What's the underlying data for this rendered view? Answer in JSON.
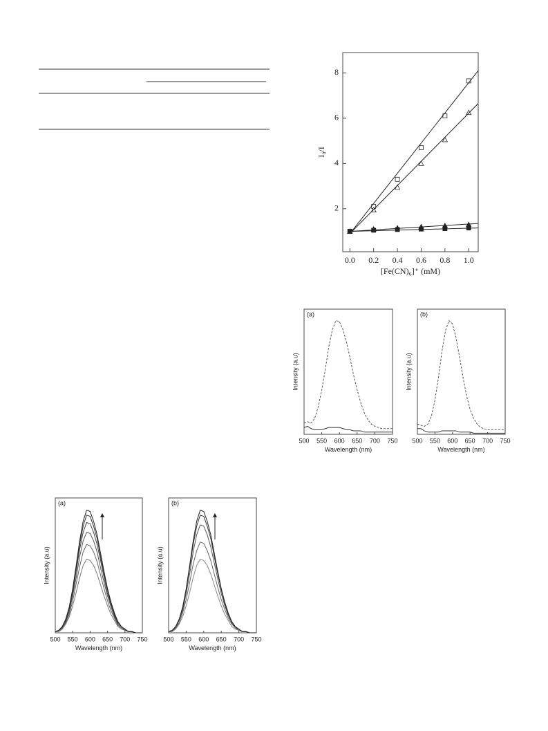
{
  "chart_data": [
    {
      "type": "scatter",
      "xlabel": "[Fe(CN)₆]⁺ (mM)",
      "ylabel": "I₀/I",
      "xlim": [
        -0.06,
        1.08
      ],
      "ylim": [
        0.1,
        8.9
      ],
      "xticks": [
        {
          "value": 0,
          "label": "0.0"
        },
        {
          "value": 0.2,
          "label": "0.2"
        },
        {
          "value": 0.4,
          "label": "0.4"
        },
        {
          "value": 0.6,
          "label": "0.6"
        },
        {
          "value": 0.8,
          "label": "0.8"
        },
        {
          "value": 1,
          "label": "1.0"
        }
      ],
      "yticks": [
        2,
        4,
        6,
        8
      ],
      "series": [
        {
          "marker": "square-open",
          "color": "#222",
          "x": [
            0,
            0.2,
            0.4,
            0.6,
            0.8,
            1.0
          ],
          "values": [
            1.0,
            2.1,
            3.3,
            4.7,
            6.1,
            7.65
          ]
        },
        {
          "marker": "triangle-open",
          "color": "#222",
          "x": [
            0,
            0.2,
            0.4,
            0.6,
            0.8,
            1.0
          ],
          "values": [
            1.0,
            1.95,
            2.95,
            4.0,
            5.05,
            6.25
          ]
        },
        {
          "marker": "triangle-filled",
          "color": "#222",
          "x": [
            0,
            0.2,
            0.4,
            0.6,
            0.8,
            1.0
          ],
          "values": [
            1.0,
            1.1,
            1.15,
            1.2,
            1.25,
            1.3
          ]
        },
        {
          "marker": "square-filled",
          "color": "#222",
          "x": [
            0,
            0.2,
            0.4,
            0.6,
            0.8,
            1.0
          ],
          "values": [
            1.0,
            1.05,
            1.08,
            1.1,
            1.12,
            1.15
          ]
        },
        {
          "color": "#222",
          "x": [
            0,
            1.08
          ],
          "values": [
            0.9,
            8.1
          ]
        },
        {
          "color": "#222",
          "x": [
            0,
            1.08
          ],
          "values": [
            0.9,
            6.65
          ]
        },
        {
          "color": "#222",
          "x": [
            0,
            1.08
          ],
          "values": [
            1.0,
            1.35
          ]
        },
        {
          "color": "#222",
          "x": [
            0,
            1.08
          ],
          "values": [
            1.0,
            1.15
          ]
        }
      ]
    },
    {
      "type": "line",
      "panel": "(a)",
      "xlabel": "Wavelength (nm)",
      "ylabel": "Intensity (a.u)",
      "xlim": [
        500,
        750
      ],
      "ylim": [
        0,
        1.1
      ],
      "xticks": [
        500,
        550,
        600,
        650,
        700,
        750
      ],
      "x": [
        500,
        510,
        520,
        530,
        540,
        550,
        560,
        570,
        580,
        590,
        600,
        610,
        620,
        630,
        640,
        650,
        660,
        670,
        680,
        690,
        700,
        710,
        720,
        730,
        740,
        750
      ],
      "series": [
        {
          "color": "#555",
          "dash": true,
          "values": [
            0.1,
            0.11,
            0.1,
            0.14,
            0.24,
            0.39,
            0.57,
            0.77,
            0.92,
            1.0,
            0.99,
            0.92,
            0.81,
            0.67,
            0.52,
            0.39,
            0.28,
            0.19,
            0.13,
            0.09,
            0.07,
            0.06,
            0.05,
            0.05,
            0.05,
            0.05
          ]
        },
        {
          "color": "#333",
          "values": [
            0.06,
            0.07,
            0.05,
            0.04,
            0.04,
            0.04,
            0.05,
            0.06,
            0.06,
            0.06,
            0.06,
            0.05,
            0.04,
            0.04,
            0.03,
            0.03,
            0.03,
            0.02,
            0.02,
            0.02,
            0.02,
            0.02,
            0.02,
            0.02,
            0.02,
            0.02
          ]
        }
      ]
    },
    {
      "type": "line",
      "panel": "(b)",
      "xlabel": "Wavelength (nm)",
      "ylabel": "Intensity (a.u)",
      "xlim": [
        500,
        750
      ],
      "ylim": [
        0,
        1.1
      ],
      "xticks": [
        500,
        550,
        600,
        650,
        700,
        750
      ],
      "x": [
        500,
        510,
        520,
        530,
        540,
        550,
        560,
        570,
        580,
        590,
        600,
        610,
        620,
        630,
        640,
        650,
        660,
        670,
        680,
        690,
        700,
        710,
        720,
        730,
        740,
        750
      ],
      "series": [
        {
          "color": "#555",
          "dash": true,
          "values": [
            0.09,
            0.08,
            0.07,
            0.09,
            0.16,
            0.3,
            0.5,
            0.73,
            0.91,
            1.0,
            0.97,
            0.85,
            0.68,
            0.5,
            0.34,
            0.22,
            0.14,
            0.09,
            0.06,
            0.05,
            0.04,
            0.04,
            0.04,
            0.04,
            0.04,
            0.04
          ]
        },
        {
          "color": "#333",
          "values": [
            0.05,
            0.05,
            0.03,
            0.02,
            0.02,
            0.02,
            0.02,
            0.03,
            0.03,
            0.03,
            0.03,
            0.03,
            0.02,
            0.02,
            0.02,
            0.02,
            0.01,
            0.01,
            0.01,
            0.01,
            0.01,
            0.01,
            0.01,
            0.01,
            0.01,
            0.01
          ]
        }
      ]
    },
    {
      "type": "line",
      "panel": "(a)",
      "xlabel": "Wavelength (nm)",
      "ylabel": "Intensity (a.u)",
      "xlim": [
        500,
        750
      ],
      "ylim": [
        0,
        1.1
      ],
      "xticks": [
        500,
        550,
        600,
        650,
        700,
        750
      ],
      "x": [
        500,
        510,
        520,
        530,
        540,
        550,
        560,
        570,
        580,
        590,
        600,
        610,
        620,
        630,
        640,
        650,
        660,
        670,
        680,
        690,
        700,
        710,
        720,
        730,
        740,
        750
      ],
      "series": [
        {
          "color": "#777",
          "values": [
            0.01,
            0.01,
            0.03,
            0.07,
            0.13,
            0.22,
            0.33,
            0.45,
            0.55,
            0.6,
            0.59,
            0.55,
            0.48,
            0.39,
            0.3,
            0.22,
            0.15,
            0.1,
            0.05,
            0.03,
            0.02,
            0.01,
            0.01,
            0,
            0,
            0
          ]
        },
        {
          "color": "#666",
          "values": [
            0.01,
            0.01,
            0.04,
            0.08,
            0.15,
            0.26,
            0.4,
            0.54,
            0.66,
            0.72,
            0.71,
            0.66,
            0.58,
            0.47,
            0.36,
            0.26,
            0.18,
            0.12,
            0.06,
            0.04,
            0.02,
            0.01,
            0.01,
            0,
            0,
            0
          ]
        },
        {
          "color": "#555",
          "values": [
            0.01,
            0.02,
            0.04,
            0.09,
            0.17,
            0.3,
            0.45,
            0.62,
            0.75,
            0.82,
            0.81,
            0.75,
            0.66,
            0.53,
            0.41,
            0.3,
            0.21,
            0.13,
            0.07,
            0.04,
            0.02,
            0.01,
            0.01,
            0,
            0,
            0
          ]
        },
        {
          "color": "#444",
          "values": [
            0.01,
            0.02,
            0.05,
            0.1,
            0.19,
            0.32,
            0.5,
            0.68,
            0.82,
            0.9,
            0.89,
            0.82,
            0.72,
            0.59,
            0.45,
            0.32,
            0.23,
            0.14,
            0.08,
            0.05,
            0.03,
            0.01,
            0.01,
            0,
            0,
            0
          ]
        },
        {
          "color": "#333",
          "values": [
            0.01,
            0.02,
            0.05,
            0.11,
            0.2,
            0.35,
            0.53,
            0.72,
            0.87,
            0.96,
            0.95,
            0.87,
            0.77,
            0.62,
            0.48,
            0.35,
            0.24,
            0.15,
            0.09,
            0.05,
            0.03,
            0.01,
            0.01,
            0,
            0,
            0
          ]
        },
        {
          "color": "#222",
          "values": [
            0.01,
            0.02,
            0.05,
            0.11,
            0.21,
            0.36,
            0.55,
            0.75,
            0.91,
            1.0,
            0.99,
            0.91,
            0.8,
            0.65,
            0.5,
            0.36,
            0.25,
            0.16,
            0.09,
            0.05,
            0.03,
            0.01,
            0.01,
            0,
            0,
            0
          ]
        }
      ]
    },
    {
      "type": "line",
      "panel": "(b)",
      "xlabel": "Wavelength (nm)",
      "ylabel": "Intensity (a.u)",
      "xlim": [
        500,
        750
      ],
      "ylim": [
        0,
        1.1
      ],
      "xticks": [
        500,
        550,
        600,
        650,
        700,
        750
      ],
      "x": [
        500,
        510,
        520,
        530,
        540,
        550,
        560,
        570,
        580,
        590,
        600,
        610,
        620,
        630,
        640,
        650,
        660,
        670,
        680,
        690,
        700,
        710,
        720,
        730,
        740,
        750
      ],
      "series": [
        {
          "color": "#888",
          "values": [
            0.01,
            0.01,
            0.03,
            0.07,
            0.13,
            0.22,
            0.33,
            0.45,
            0.55,
            0.6,
            0.59,
            0.55,
            0.48,
            0.39,
            0.3,
            0.22,
            0.15,
            0.1,
            0.05,
            0.03,
            0.02,
            0.01,
            0.01,
            0,
            0,
            0
          ]
        },
        {
          "color": "#666",
          "values": [
            0.01,
            0.01,
            0.04,
            0.08,
            0.16,
            0.27,
            0.41,
            0.56,
            0.67,
            0.74,
            0.73,
            0.67,
            0.59,
            0.48,
            0.37,
            0.27,
            0.19,
            0.12,
            0.07,
            0.04,
            0.02,
            0.01,
            0.01,
            0,
            0,
            0
          ]
        },
        {
          "color": "#555",
          "values": [
            0.01,
            0.02,
            0.04,
            0.1,
            0.18,
            0.32,
            0.48,
            0.66,
            0.8,
            0.88,
            0.87,
            0.8,
            0.7,
            0.57,
            0.44,
            0.32,
            0.22,
            0.14,
            0.08,
            0.04,
            0.03,
            0.01,
            0.01,
            0,
            0,
            0
          ]
        },
        {
          "color": "#333",
          "values": [
            0.01,
            0.02,
            0.05,
            0.11,
            0.2,
            0.35,
            0.53,
            0.72,
            0.87,
            0.96,
            0.95,
            0.87,
            0.77,
            0.62,
            0.48,
            0.35,
            0.24,
            0.15,
            0.09,
            0.05,
            0.03,
            0.01,
            0.01,
            0,
            0,
            0
          ]
        },
        {
          "color": "#222",
          "values": [
            0.01,
            0.02,
            0.05,
            0.11,
            0.21,
            0.36,
            0.55,
            0.75,
            0.91,
            1.0,
            0.99,
            0.91,
            0.8,
            0.65,
            0.5,
            0.36,
            0.25,
            0.16,
            0.09,
            0.05,
            0.03,
            0.01,
            0.01,
            0,
            0,
            0
          ]
        }
      ]
    }
  ]
}
